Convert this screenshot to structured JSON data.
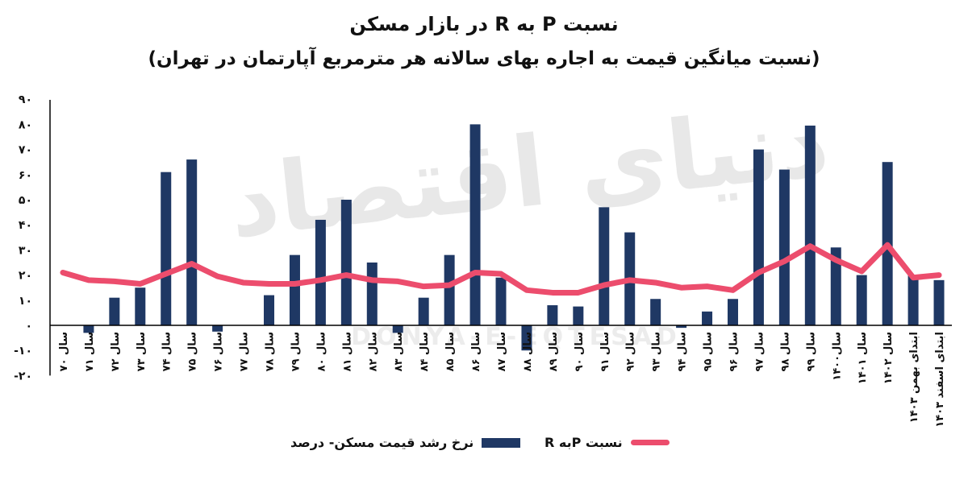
{
  "title": "نسبت P به R در بازار مسکن",
  "subtitle": "(نسبت میانگین قیمت به اجاره بهای سالانه هر مترمربع آپارتمان در تهران)",
  "watermark": "دنیای اقتصاد",
  "watermark_latin": "DONYA-E-EQTESAD",
  "colors": {
    "bar": "#1f3864",
    "line": "#ec4d6d",
    "axis": "#000000",
    "watermark": "#e8e8e8"
  },
  "chart_data": {
    "type": "bar",
    "categories": [
      "سال ۷۰",
      "سال ۷۱",
      "سال ۷۲",
      "سال ۷۳",
      "سال ۷۴",
      "سال ۷۵",
      "سال ۷۶",
      "سال ۷۷",
      "سال ۷۸",
      "سال ۷۹",
      "سال ۸۰",
      "سال ۸۱",
      "سال ۸۲",
      "سال ۸۳",
      "سال ۸۴",
      "سال ۸۵",
      "سال ۸۶",
      "سال ۸۷",
      "سال ۸۸",
      "سال ۸۹",
      "سال ۹۰",
      "سال ۹۱",
      "سال ۹۲",
      "سال ۹۳",
      "سال ۹۴",
      "سال ۹۵",
      "سال ۹۶",
      "سال ۹۷",
      "سال ۹۸",
      "سال ۹۹",
      "سال۱۴۰۰",
      "سال ۱۴۰۱",
      "سال ۱۴۰۲",
      "ابتدای بهمن ۱۴۰۳",
      "ابتدای اسفند ۱۴۰۳"
    ],
    "ylim": [
      -20,
      90
    ],
    "yticks": [
      90,
      80,
      70,
      60,
      50,
      40,
      30,
      20,
      10,
      0,
      -10,
      -20
    ],
    "ytick_labels": [
      "۹۰",
      "۸۰",
      "۷۰",
      "۶۰",
      "۵۰",
      "۴۰",
      "۳۰",
      "۲۰",
      "۱۰",
      "۰",
      "-۱۰",
      "-۲۰"
    ],
    "series": [
      {
        "name": "نرخ رشد قیمت مسکن- درصد",
        "kind": "bar",
        "values": [
          0,
          -3,
          11,
          15,
          61,
          66,
          -2.5,
          0,
          12,
          28,
          42,
          50,
          25,
          -3,
          11,
          28,
          80,
          19,
          -10,
          8,
          7.5,
          47,
          37,
          10.5,
          -1,
          5.5,
          10.5,
          70,
          62,
          79.5,
          31,
          20,
          65,
          20,
          18
        ]
      },
      {
        "name": "نسبت Pبه R",
        "kind": "line",
        "values": [
          21,
          18,
          17.5,
          16.5,
          20.5,
          24.5,
          19.5,
          17,
          16.5,
          16.5,
          18,
          20,
          18,
          17.5,
          15.5,
          16,
          21,
          20.5,
          14,
          13,
          13,
          16,
          18,
          17,
          15,
          15.5,
          14,
          21,
          25.5,
          31.5,
          26,
          21.5,
          32,
          19,
          20
        ]
      }
    ]
  }
}
